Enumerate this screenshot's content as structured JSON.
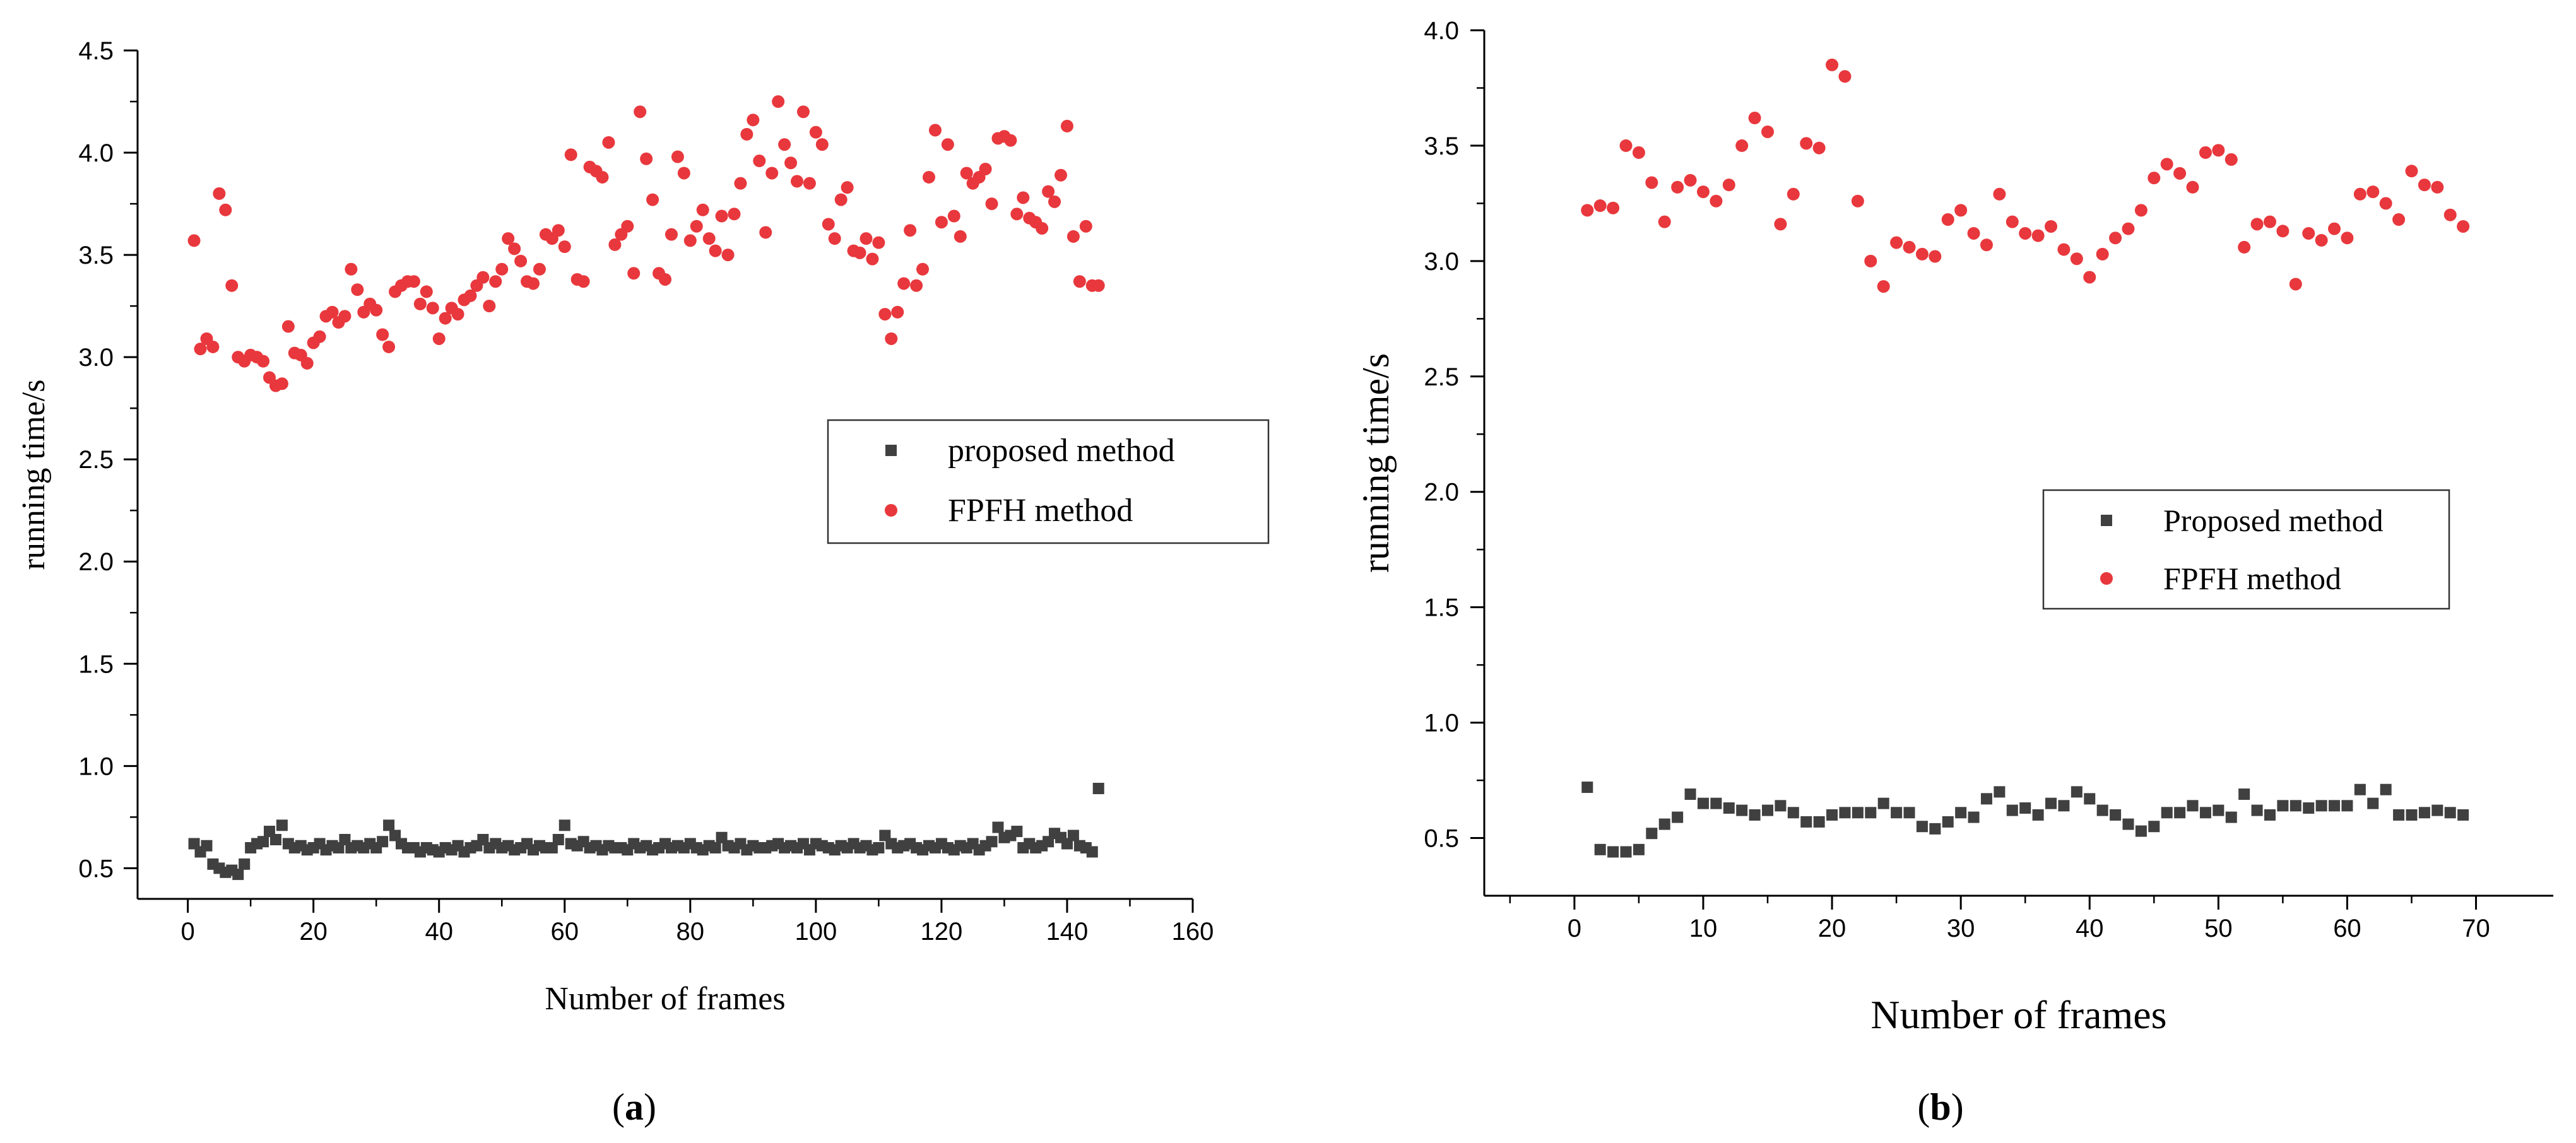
{
  "colors": {
    "proposed": "#404040",
    "fpfh": "#e8383d"
  },
  "chart_data": [
    {
      "type": "scatter",
      "panel": "a",
      "caption": {
        "open": "(",
        "letter": "a",
        "close": ")"
      },
      "xlabel": "Number of frames",
      "ylabel": "running time/s",
      "xlim": [
        -8,
        160
      ],
      "ylim": [
        0.35,
        4.5
      ],
      "xticks": [
        0,
        20,
        40,
        60,
        80,
        100,
        120,
        140,
        160
      ],
      "yticks": [
        0.5,
        1.0,
        1.5,
        2.0,
        2.5,
        3.0,
        3.5,
        4.0,
        4.5
      ],
      "ytick_labels": [
        "0.5",
        "1.0",
        "1.5",
        "2.0",
        "2.5",
        "3.0",
        "3.5",
        "4.0",
        "4.5"
      ],
      "legend_position": "center-right",
      "series": [
        {
          "name": "proposed method",
          "marker": "square",
          "color_key": "proposed",
          "x": [
            1,
            2,
            3,
            4,
            5,
            6,
            7,
            8,
            9,
            10,
            11,
            12,
            13,
            14,
            15,
            16,
            17,
            18,
            19,
            20,
            21,
            22,
            23,
            24,
            25,
            26,
            27,
            28,
            29,
            30,
            31,
            32,
            33,
            34,
            35,
            36,
            37,
            38,
            39,
            40,
            41,
            42,
            43,
            44,
            45,
            46,
            47,
            48,
            49,
            50,
            51,
            52,
            53,
            54,
            55,
            56,
            57,
            58,
            59,
            60,
            61,
            62,
            63,
            64,
            65,
            66,
            67,
            68,
            69,
            70,
            71,
            72,
            73,
            74,
            75,
            76,
            77,
            78,
            79,
            80,
            81,
            82,
            83,
            84,
            85,
            86,
            87,
            88,
            89,
            90,
            91,
            92,
            93,
            94,
            95,
            96,
            97,
            98,
            99,
            100,
            101,
            102,
            103,
            104,
            105,
            106,
            107,
            108,
            109,
            110,
            111,
            112,
            113,
            114,
            115,
            116,
            117,
            118,
            119,
            120,
            121,
            122,
            123,
            124,
            125,
            126,
            127,
            128,
            129,
            130,
            131,
            132,
            133,
            134,
            135,
            136,
            137,
            138,
            139,
            140,
            141,
            142,
            143,
            144,
            145
          ],
          "values": [
            0.62,
            0.58,
            0.61,
            0.52,
            0.5,
            0.48,
            0.49,
            0.47,
            0.52,
            0.6,
            0.62,
            0.63,
            0.68,
            0.64,
            0.71,
            0.62,
            0.6,
            0.61,
            0.59,
            0.6,
            0.62,
            0.59,
            0.61,
            0.6,
            0.64,
            0.6,
            0.61,
            0.6,
            0.62,
            0.6,
            0.63,
            0.71,
            0.66,
            0.62,
            0.6,
            0.6,
            0.58,
            0.6,
            0.59,
            0.58,
            0.6,
            0.59,
            0.61,
            0.58,
            0.6,
            0.61,
            0.64,
            0.6,
            0.62,
            0.6,
            0.61,
            0.59,
            0.6,
            0.62,
            0.59,
            0.61,
            0.6,
            0.6,
            0.64,
            0.71,
            0.62,
            0.61,
            0.63,
            0.6,
            0.61,
            0.59,
            0.61,
            0.6,
            0.6,
            0.59,
            0.62,
            0.6,
            0.61,
            0.59,
            0.6,
            0.62,
            0.6,
            0.61,
            0.6,
            0.62,
            0.6,
            0.59,
            0.61,
            0.6,
            0.65,
            0.61,
            0.6,
            0.62,
            0.59,
            0.61,
            0.6,
            0.6,
            0.61,
            0.62,
            0.6,
            0.61,
            0.6,
            0.62,
            0.59,
            0.62,
            0.61,
            0.6,
            0.59,
            0.61,
            0.6,
            0.62,
            0.6,
            0.61,
            0.59,
            0.6,
            0.66,
            0.62,
            0.6,
            0.61,
            0.62,
            0.6,
            0.59,
            0.61,
            0.6,
            0.62,
            0.6,
            0.59,
            0.61,
            0.6,
            0.62,
            0.59,
            0.61,
            0.63,
            0.7,
            0.65,
            0.66,
            0.68,
            0.6,
            0.62,
            0.6,
            0.61,
            0.63,
            0.67,
            0.65,
            0.62,
            0.66,
            0.61,
            0.6,
            0.58,
            0.89
          ]
        },
        {
          "name": "FPFH method",
          "marker": "circle",
          "color_key": "fpfh",
          "x": [
            1,
            2,
            3,
            4,
            5,
            6,
            7,
            8,
            9,
            10,
            11,
            12,
            13,
            14,
            15,
            16,
            17,
            18,
            19,
            20,
            21,
            22,
            23,
            24,
            25,
            26,
            27,
            28,
            29,
            30,
            31,
            32,
            33,
            34,
            35,
            36,
            37,
            38,
            39,
            40,
            41,
            42,
            43,
            44,
            45,
            46,
            47,
            48,
            49,
            50,
            51,
            52,
            53,
            54,
            55,
            56,
            57,
            58,
            59,
            60,
            61,
            62,
            63,
            64,
            65,
            66,
            67,
            68,
            69,
            70,
            71,
            72,
            73,
            74,
            75,
            76,
            77,
            78,
            79,
            80,
            81,
            82,
            83,
            84,
            85,
            86,
            87,
            88,
            89,
            90,
            91,
            92,
            93,
            94,
            95,
            96,
            97,
            98,
            99,
            100,
            101,
            102,
            103,
            104,
            105,
            106,
            107,
            108,
            109,
            110,
            111,
            112,
            113,
            114,
            115,
            116,
            117,
            118,
            119,
            120,
            121,
            122,
            123,
            124,
            125,
            126,
            127,
            128,
            129,
            130,
            131,
            132,
            133,
            134,
            135,
            136,
            137,
            138,
            139,
            140,
            141,
            142,
            143,
            144,
            145
          ],
          "values": [
            3.57,
            3.04,
            3.09,
            3.05,
            3.8,
            3.72,
            3.35,
            3.0,
            2.98,
            3.01,
            3.0,
            2.98,
            2.9,
            2.86,
            2.87,
            3.15,
            3.02,
            3.01,
            2.97,
            3.07,
            3.1,
            3.2,
            3.22,
            3.17,
            3.2,
            3.43,
            3.33,
            3.22,
            3.26,
            3.23,
            3.11,
            3.05,
            3.32,
            3.35,
            3.37,
            3.37,
            3.26,
            3.32,
            3.24,
            3.09,
            3.19,
            3.24,
            3.21,
            3.28,
            3.3,
            3.35,
            3.39,
            3.25,
            3.37,
            3.43,
            3.58,
            3.53,
            3.47,
            3.37,
            3.36,
            3.43,
            3.6,
            3.58,
            3.62,
            3.54,
            3.99,
            3.38,
            3.37,
            3.93,
            3.91,
            3.88,
            4.05,
            3.55,
            3.6,
            3.64,
            3.41,
            4.2,
            3.97,
            3.77,
            3.41,
            3.38,
            3.6,
            3.98,
            3.9,
            3.57,
            3.64,
            3.72,
            3.58,
            3.52,
            3.69,
            3.5,
            3.7,
            3.85,
            4.09,
            4.16,
            3.96,
            3.61,
            3.9,
            4.25,
            4.04,
            3.95,
            3.86,
            4.2,
            3.85,
            4.1,
            4.04,
            3.65,
            3.58,
            3.77,
            3.83,
            3.52,
            3.51,
            3.58,
            3.48,
            3.56,
            3.21,
            3.09,
            3.22,
            3.36,
            3.62,
            3.35,
            3.43,
            3.88,
            4.11,
            3.66,
            4.04,
            3.69,
            3.59,
            3.9,
            3.85,
            3.88,
            3.92,
            3.75,
            4.07,
            4.08,
            4.06,
            3.7,
            3.78,
            3.68,
            3.66,
            3.63,
            3.81,
            3.76,
            3.89,
            4.13,
            3.59,
            3.37,
            3.64,
            3.35,
            3.35
          ]
        }
      ]
    },
    {
      "type": "scatter",
      "panel": "b",
      "caption": {
        "open": "(",
        "letter": "b",
        "close": ")"
      },
      "xlabel": "Number of frames",
      "ylabel": "running time/s",
      "xlim": [
        -7,
        76
      ],
      "ylim": [
        0.25,
        4.0
      ],
      "xticks": [
        0,
        10,
        20,
        30,
        40,
        50,
        60,
        70
      ],
      "yticks": [
        0.5,
        1.0,
        1.5,
        2.0,
        2.5,
        3.0,
        3.5,
        4.0
      ],
      "ytick_labels": [
        "0.5",
        "1.0",
        "1.5",
        "2.0",
        "2.5",
        "3.0",
        "3.5",
        "4.0"
      ],
      "legend_position": "center-right",
      "series": [
        {
          "name": "Proposed method",
          "marker": "square",
          "color_key": "proposed",
          "x": [
            1,
            2,
            3,
            4,
            5,
            6,
            7,
            8,
            9,
            10,
            11,
            12,
            13,
            14,
            15,
            16,
            17,
            18,
            19,
            20,
            21,
            22,
            23,
            24,
            25,
            26,
            27,
            28,
            29,
            30,
            31,
            32,
            33,
            34,
            35,
            36,
            37,
            38,
            39,
            40,
            41,
            42,
            43,
            44,
            45,
            46,
            47,
            48,
            49,
            50,
            51,
            52,
            53,
            54,
            55,
            56,
            57,
            58,
            59,
            60,
            61,
            62,
            63,
            64,
            65,
            66,
            67,
            68,
            69
          ],
          "values": [
            0.72,
            0.45,
            0.44,
            0.44,
            0.45,
            0.52,
            0.56,
            0.59,
            0.69,
            0.65,
            0.65,
            0.63,
            0.62,
            0.6,
            0.62,
            0.64,
            0.61,
            0.57,
            0.57,
            0.6,
            0.61,
            0.61,
            0.61,
            0.65,
            0.61,
            0.61,
            0.55,
            0.54,
            0.57,
            0.61,
            0.59,
            0.67,
            0.7,
            0.62,
            0.63,
            0.6,
            0.65,
            0.64,
            0.7,
            0.67,
            0.62,
            0.6,
            0.56,
            0.53,
            0.55,
            0.61,
            0.61,
            0.64,
            0.61,
            0.62,
            0.59,
            0.69,
            0.62,
            0.6,
            0.64,
            0.64,
            0.63,
            0.64,
            0.64,
            0.64,
            0.71,
            0.65,
            0.71,
            0.6,
            0.6,
            0.61,
            0.62,
            0.61,
            0.6
          ]
        },
        {
          "name": "FPFH method",
          "marker": "circle",
          "color_key": "fpfh",
          "x": [
            1,
            2,
            3,
            4,
            5,
            6,
            7,
            8,
            9,
            10,
            11,
            12,
            13,
            14,
            15,
            16,
            17,
            18,
            19,
            20,
            21,
            22,
            23,
            24,
            25,
            26,
            27,
            28,
            29,
            30,
            31,
            32,
            33,
            34,
            35,
            36,
            37,
            38,
            39,
            40,
            41,
            42,
            43,
            44,
            45,
            46,
            47,
            48,
            49,
            50,
            51,
            52,
            53,
            54,
            55,
            56,
            57,
            58,
            59,
            60,
            61,
            62,
            63,
            64,
            65,
            66,
            67,
            68,
            69
          ],
          "values": [
            3.22,
            3.24,
            3.23,
            3.5,
            3.47,
            3.34,
            3.17,
            3.32,
            3.35,
            3.3,
            3.26,
            3.33,
            3.5,
            3.62,
            3.56,
            3.16,
            3.29,
            3.51,
            3.49,
            3.85,
            3.8,
            3.26,
            3.0,
            2.89,
            3.08,
            3.06,
            3.03,
            3.02,
            3.18,
            3.22,
            3.12,
            3.07,
            3.29,
            3.17,
            3.12,
            3.11,
            3.15,
            3.05,
            3.01,
            2.93,
            3.03,
            3.1,
            3.14,
            3.22,
            3.36,
            3.42,
            3.38,
            3.32,
            3.47,
            3.48,
            3.44,
            3.06,
            3.16,
            3.17,
            3.13,
            2.9,
            3.12,
            3.09,
            3.14,
            3.1,
            3.29,
            3.3,
            3.25,
            3.18,
            3.39,
            3.33,
            3.32,
            3.2,
            3.15
          ]
        }
      ]
    }
  ]
}
